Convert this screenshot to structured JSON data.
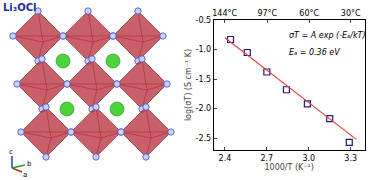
{
  "structure": {
    "label": "Li₃OCl",
    "axes": [
      "c",
      "a",
      "b"
    ]
  },
  "chart_data": {
    "type": "scatter",
    "x_title": "1000/T (K⁻¹)",
    "y_title": "log(σT) (S cm⁻¹ K)",
    "annotations": [
      "σT = A exp (-Eₐ/kT)",
      "Eₐ = 0.36 eV"
    ],
    "xlim": [
      2.32,
      3.4
    ],
    "xticks": [
      2.4,
      2.7,
      {
        "value": 3,
        "label": "3.0"
      },
      3.3
    ],
    "x2ticks": [
      {
        "value": 2.398,
        "label": "144°C"
      },
      {
        "value": 2.703,
        "label": "97°C"
      },
      {
        "value": 3.003,
        "label": "60°C"
      },
      {
        "value": 3.3,
        "label": "30°C"
      }
    ],
    "ylim": [
      -2.7,
      -0.5
    ],
    "yticks": [
      -2.5,
      {
        "value": -2,
        "label": "-2.0"
      },
      -1.5,
      {
        "value": -1,
        "label": "-1.0"
      },
      -0.5
    ],
    "grid": false,
    "series": [
      {
        "type": "scatter",
        "marker": "square-open",
        "color": "#1a1a80",
        "x": [
          2.44,
          2.56,
          2.7,
          2.84,
          2.99,
          3.15,
          3.29
        ],
        "values": [
          -0.83,
          -1.05,
          -1.38,
          -1.68,
          -1.92,
          -2.17,
          -2.57
        ]
      },
      {
        "type": "line",
        "line_style": "solid",
        "color": "#e0453a",
        "x": [
          2.4,
          3.34
        ],
        "values": [
          -0.8,
          -2.52
        ]
      }
    ]
  }
}
